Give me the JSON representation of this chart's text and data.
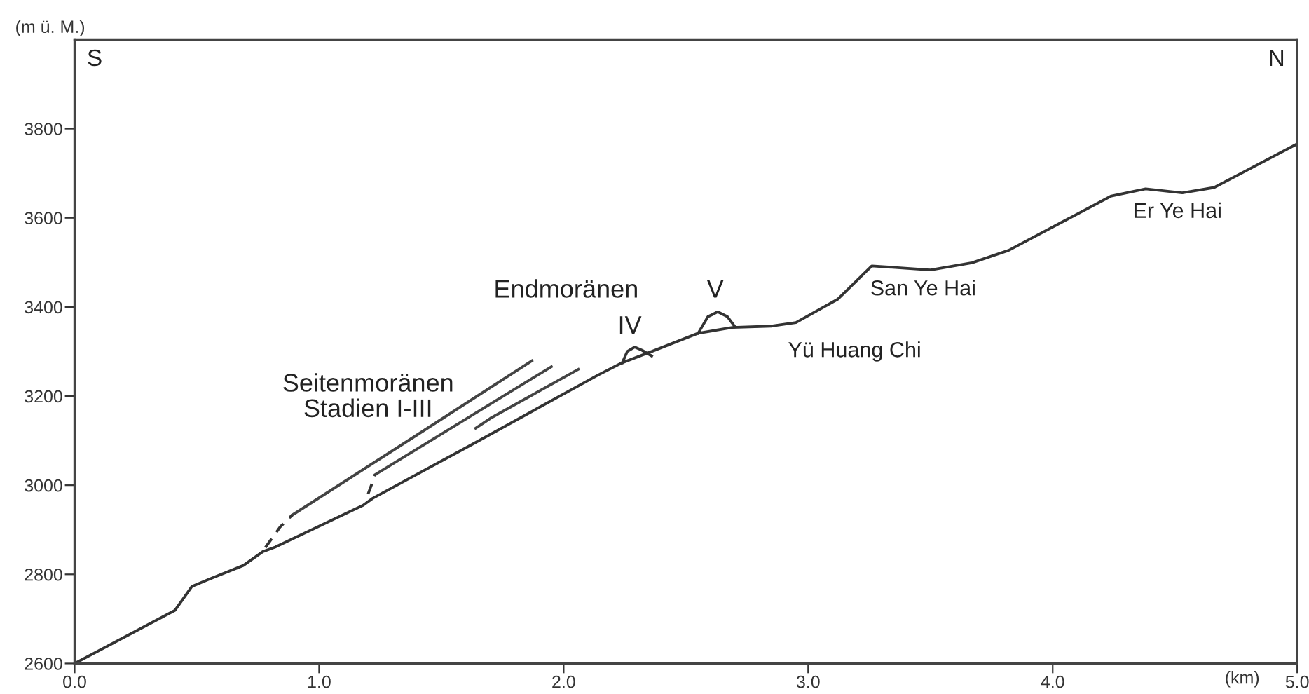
{
  "chart_data": {
    "type": "line",
    "xlabel": "(km)",
    "ylabel": "(m ü. M.)",
    "xlim": [
      0,
      5
    ],
    "ylim": [
      2600,
      4000
    ],
    "xticks": [
      {
        "value": 0,
        "label": "0.0"
      },
      {
        "value": 1,
        "label": "1.0"
      },
      {
        "value": 2,
        "label": "2.0"
      },
      {
        "value": 3,
        "label": "3.0"
      },
      {
        "value": 4,
        "label": "4.0"
      },
      {
        "value": 5,
        "label": "5.0"
      }
    ],
    "yticks": [
      2600,
      2800,
      3000,
      3200,
      3400,
      3600,
      3800
    ],
    "grid": false,
    "legend": false,
    "marker": "none",
    "series": [
      {
        "color": "#333333",
        "line_style": "solid",
        "x": [
          0,
          0.41,
          0.48,
          0.55,
          0.69,
          0.77,
          0.82,
          1.18,
          1.22,
          1.62,
          2.14,
          2.24,
          2.36,
          2.55,
          2.69,
          2.85,
          2.95,
          3.12,
          3.26,
          3.5,
          3.67,
          3.82,
          4.24,
          4.38,
          4.53,
          4.66,
          5.0
        ],
        "values": [
          2600,
          2719,
          2773,
          2789,
          2820,
          2851,
          2861,
          2955,
          2971,
          3090,
          3247,
          3275,
          3300,
          3341,
          3354,
          3357,
          3365,
          3417,
          3492,
          3483,
          3499,
          3527,
          3649,
          3665,
          3656,
          3668,
          3766
        ]
      },
      {
        "color": "#333333",
        "line_style": "solid",
        "x": [
          2.24,
          2.26,
          2.29,
          2.32,
          2.36
        ],
        "values": [
          3275,
          3300,
          3310,
          3303,
          3290
        ]
      },
      {
        "color": "#333333",
        "line_style": "solid",
        "x": [
          2.55,
          2.59,
          2.63,
          2.67,
          2.7
        ],
        "values": [
          3341,
          3378,
          3389,
          3378,
          3356
        ]
      },
      {
        "color": "#444444",
        "line_style": "solid",
        "x": [
          0.89,
          1.35,
          1.87
        ],
        "values": [
          2933,
          3095,
          3279
        ]
      },
      {
        "color": "#444444",
        "line_style": "solid",
        "x": [
          1.23,
          1.95
        ],
        "values": [
          3024,
          3266
        ]
      },
      {
        "color": "#444444",
        "line_style": "solid",
        "x": [
          1.64,
          1.7,
          2.06
        ],
        "values": [
          3128,
          3150,
          3260
        ]
      },
      {
        "color": "#333333",
        "line_style": "dashed",
        "x": [
          0.78,
          0.84,
          0.89
        ],
        "values": [
          2860,
          2906,
          2933
        ]
      },
      {
        "color": "#333333",
        "line_style": "dashed",
        "x": [
          1.2,
          1.23
        ],
        "values": [
          2980,
          3024
        ]
      }
    ],
    "annotations": [
      "S",
      "N",
      "Seitenmoränen\nStadien I-III",
      "Endmoränen",
      "IV",
      "V",
      "Yü Huang Chi",
      "San Ye Hai",
      "Er Ye Hai"
    ]
  }
}
